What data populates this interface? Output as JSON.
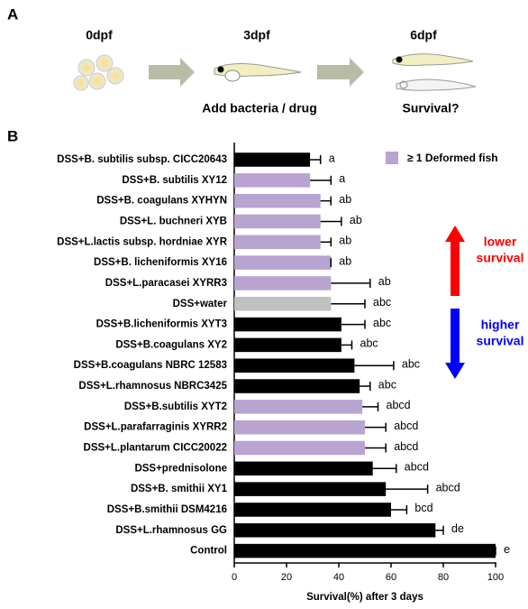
{
  "panel_a": {
    "label": "A",
    "stages": [
      "0dpf",
      "3dpf",
      "6dpf"
    ],
    "step_3dpf": "Add bacteria / drug",
    "step_6dpf": "Survival?"
  },
  "chart_data": {
    "type": "hbar",
    "panel_label": "B",
    "categories": [
      "DSS+B. subtilis subsp. CICC20643",
      "DSS+B. subtilis XY12",
      "DSS+B. coagulans XYHYN",
      "DSS+L. buchneri XYB",
      "DSS+L.lactis subsp. hordniae XYR",
      "DSS+B. licheniformis XY16",
      "DSS+L.paracasei XYRR3",
      "DSS+water",
      "DSS+B.licheniformis XYT3",
      "DSS+B.coagulans XY2",
      "DSS+B.coagulans NBRC 12583",
      "DSS+L.rhamnosus NBRC3425",
      "DSS+B.subtilis XYT2",
      "DSS+L.parafarraginis XYRR2",
      "DSS+L.plantarum CICC20022",
      "DSS+prednisolone",
      "DSS+B. smithii XY1",
      "DSS+B.smithii DSM4216",
      "DSS+L.rhamnosus GG",
      "Control"
    ],
    "values": [
      29,
      29,
      33,
      33,
      33,
      37,
      37,
      37,
      41,
      41,
      46,
      48,
      49,
      50,
      50,
      53,
      58,
      60,
      77,
      100
    ],
    "errors": [
      4,
      8,
      4,
      8,
      4,
      0,
      15,
      13,
      9,
      4,
      15,
      4,
      6,
      8,
      8,
      9,
      16,
      6,
      3,
      0
    ],
    "colors": [
      "#000000",
      "#b9a3d0",
      "#b9a3d0",
      "#b9a3d0",
      "#b9a3d0",
      "#b9a3d0",
      "#b9a3d0",
      "#c0c0c0",
      "#000000",
      "#000000",
      "#000000",
      "#000000",
      "#b9a3d0",
      "#b9a3d0",
      "#b9a3d0",
      "#000000",
      "#000000",
      "#000000",
      "#000000",
      "#000000"
    ],
    "annotations": [
      "a",
      "a",
      "ab",
      "ab",
      "ab",
      "ab",
      "ab",
      "abc",
      "abc",
      "abc",
      "abc",
      "abc",
      "abcd",
      "abcd",
      "abcd",
      "abcd",
      "abcd",
      "bcd",
      "de",
      "e"
    ],
    "xlim": [
      0,
      100
    ],
    "xticks": [
      0,
      20,
      40,
      60,
      80,
      100
    ],
    "xlabel": "Survival(%) after 3 days",
    "legend": {
      "label": "≥ 1 Deformed fish",
      "color": "#b9a3d0"
    },
    "arrows": [
      {
        "lines": [
          "lower",
          "survival"
        ],
        "color": "#ff0000"
      },
      {
        "lines": [
          "higher",
          "survival"
        ],
        "color": "#0000ff"
      }
    ]
  }
}
